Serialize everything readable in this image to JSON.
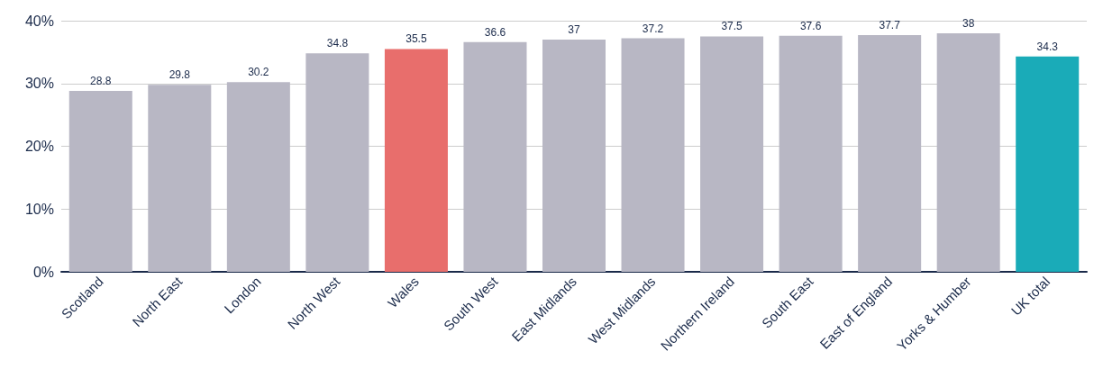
{
  "chart_data": {
    "type": "bar",
    "categories": [
      "Scotland",
      "North East",
      "London",
      "North West",
      "Wales",
      "South West",
      "East Midlands",
      "West Midlands",
      "Northern Ireland",
      "South East",
      "East of England",
      "Yorks & Humber",
      "UK total"
    ],
    "values": [
      28.8,
      29.8,
      30.2,
      34.8,
      35.5,
      36.6,
      37,
      37.2,
      37.5,
      37.6,
      37.7,
      38,
      34.3
    ],
    "colors": [
      "#b8b7c4",
      "#b8b7c4",
      "#b8b7c4",
      "#b8b7c4",
      "#e86e6c",
      "#b8b7c4",
      "#b8b7c4",
      "#b8b7c4",
      "#b8b7c4",
      "#b8b7c4",
      "#b8b7c4",
      "#b8b7c4",
      "#1aabb8"
    ],
    "ylim": [
      0,
      40
    ],
    "yticks": [
      {
        "value": 0,
        "label": "0%"
      },
      {
        "value": 10,
        "label": "10%"
      },
      {
        "value": 20,
        "label": "20%"
      },
      {
        "value": 30,
        "label": "30%"
      },
      {
        "value": 40,
        "label": "40%"
      }
    ],
    "grid": "y",
    "data_labels": true
  }
}
